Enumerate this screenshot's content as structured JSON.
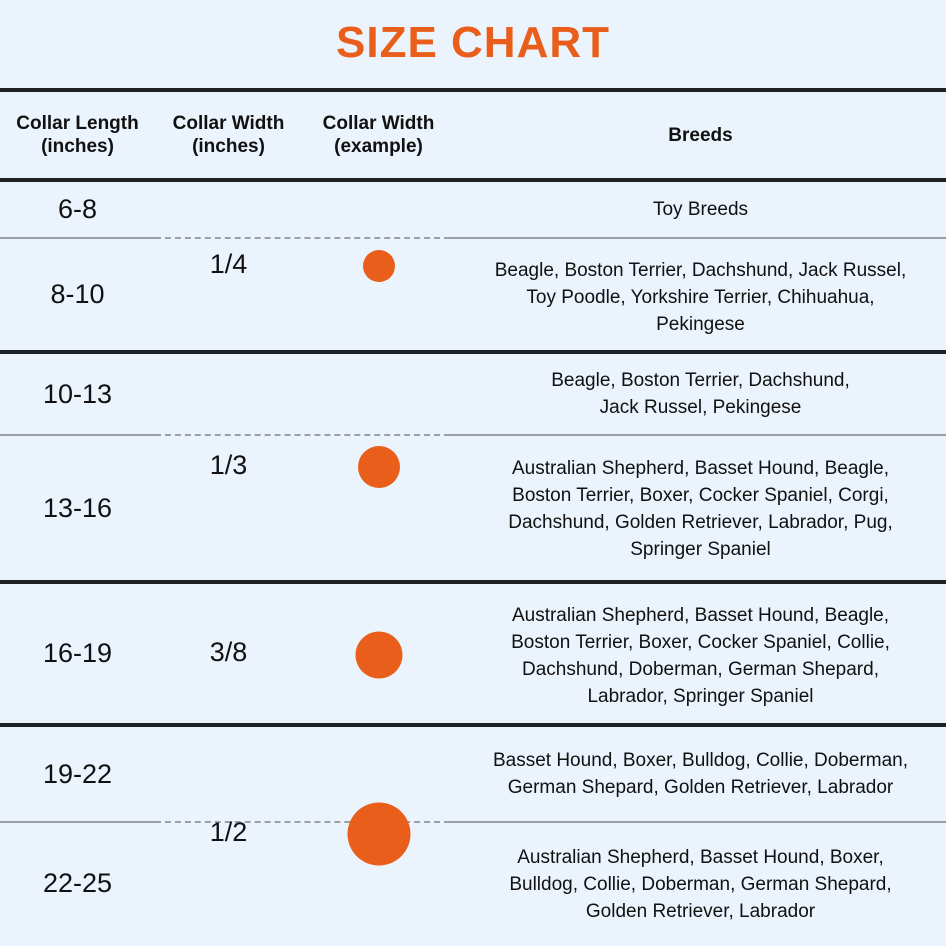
{
  "title": "SIZE CHART",
  "accent_color": "#e85e1a",
  "headers": [
    "Collar Length\n(inches)",
    "Collar Width\n(inches)",
    "Collar Width\n(example)",
    "Breeds"
  ],
  "lengths": [
    "6-8",
    "8-10",
    "10-13",
    "13-16",
    "16-19",
    "19-22",
    "22-25"
  ],
  "widths": [
    "1/4",
    "1/3",
    "3/8",
    "1/2"
  ],
  "breeds": [
    "Toy Breeds",
    "Beagle, Boston Terrier, Dachshund, Jack Russel,\nToy Poodle, Yorkshire Terrier, Chihuahua,\nPekingese",
    "Beagle, Boston Terrier, Dachshund,\nJack Russel, Pekingese",
    "Australian Shepherd, Basset Hound, Beagle,\nBoston Terrier, Boxer, Cocker Spaniel, Corgi,\nDachshund, Golden Retriever, Labrador, Pug,\nSpringer Spaniel",
    "Australian Shepherd, Basset Hound, Beagle,\nBoston Terrier, Boxer, Cocker Spaniel, Collie,\nDachshund, Doberman, German Shepard,\nLabrador, Springer Spaniel",
    "Basset Hound, Boxer, Bulldog, Collie, Doberman,\nGerman Shepard, Golden Retriever, Labrador",
    "Australian Shepherd, Basset Hound, Boxer,\nBulldog, Collie, Doberman, German Shepard,\nGolden Retriever, Labrador"
  ]
}
